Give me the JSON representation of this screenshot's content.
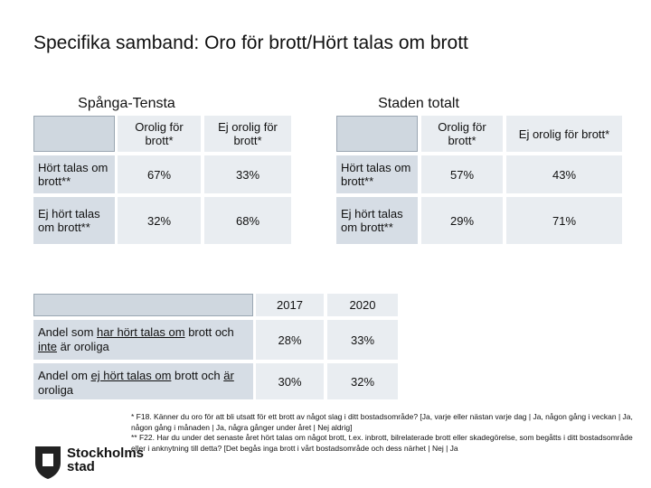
{
  "title": "Specifika samband: Oro för brott/Hört talas om brott",
  "tables": [
    {
      "caption": "Spånga-Tensta",
      "columns": [
        "Orolig för brott*",
        "Ej orolig för brott*"
      ],
      "rows": [
        {
          "label": "Hört talas om brott**",
          "cells": [
            "67%",
            "33%"
          ]
        },
        {
          "label": "Ej hört talas om brott**",
          "cells": [
            "32%",
            "68%"
          ]
        }
      ]
    },
    {
      "caption": "Staden totalt",
      "columns": [
        "Orolig för brott*",
        "Ej orolig för brott*"
      ],
      "rows": [
        {
          "label": "Hört talas om brott**",
          "cells": [
            "57%",
            "43%"
          ]
        },
        {
          "label": "Ej hört talas om brott**",
          "cells": [
            "29%",
            "71%"
          ]
        }
      ]
    }
  ],
  "trend_table": {
    "columns": [
      "2017",
      "2020"
    ],
    "rows": [
      {
        "label_parts": [
          "Andel som ",
          "har hört talas om",
          " brott och ",
          "inte",
          " är oroliga"
        ],
        "cells": [
          "28%",
          "33%"
        ]
      },
      {
        "label_parts": [
          "Andel om ",
          "ej hört talas om",
          " brott och ",
          "är",
          " oroliga"
        ],
        "cells": [
          "30%",
          "32%"
        ]
      }
    ]
  },
  "footnotes": [
    "* F18. Känner du oro för att bli utsatt för ett brott av något slag i ditt bostadsområde? [Ja, varje eller nästan varje dag | Ja, någon gång i veckan | Ja, någon gång i månaden | Ja, några gånger under året | Nej aldrig]",
    "** F22. Har du under det senaste året hört talas om något brott, t.ex. inbrott, bilrelaterade brott eller skadegörelse, som begåtts i ditt bostadsområde eller i anknytning till detta? [Det begås inga brott i vårt bostadsområde och dess närhet | Nej | Ja"
  ],
  "logo": {
    "line1": "Stockholms",
    "line2": "stad"
  }
}
